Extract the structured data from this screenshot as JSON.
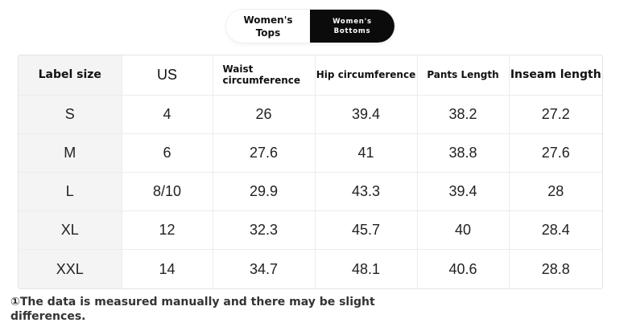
{
  "toggle": {
    "tabs": [
      {
        "label": "Women's Tops",
        "active": false
      },
      {
        "label": "Women's Bottoms",
        "active": true
      }
    ]
  },
  "table": {
    "headers": [
      "Label size",
      "US",
      "Waist circumference",
      "Hip circumference",
      "Pants Length",
      "Inseam length"
    ],
    "rows": [
      [
        "S",
        "4",
        "26",
        "39.4",
        "38.2",
        "27.2"
      ],
      [
        "M",
        "6",
        "27.6",
        "41",
        "38.8",
        "27.6"
      ],
      [
        "L",
        "8/10",
        "29.9",
        "43.3",
        "39.4",
        "28"
      ],
      [
        "XL",
        "12",
        "32.3",
        "45.7",
        "40",
        "28.4"
      ],
      [
        "XXL",
        "14",
        "34.7",
        "48.1",
        "40.6",
        "28.8"
      ]
    ]
  },
  "footnote": "①The data is measured manually and there may be slight differences.",
  "colors": {
    "active_tab_bg": "#0b0b0b",
    "label_column_bg": "#f4f4f4"
  }
}
